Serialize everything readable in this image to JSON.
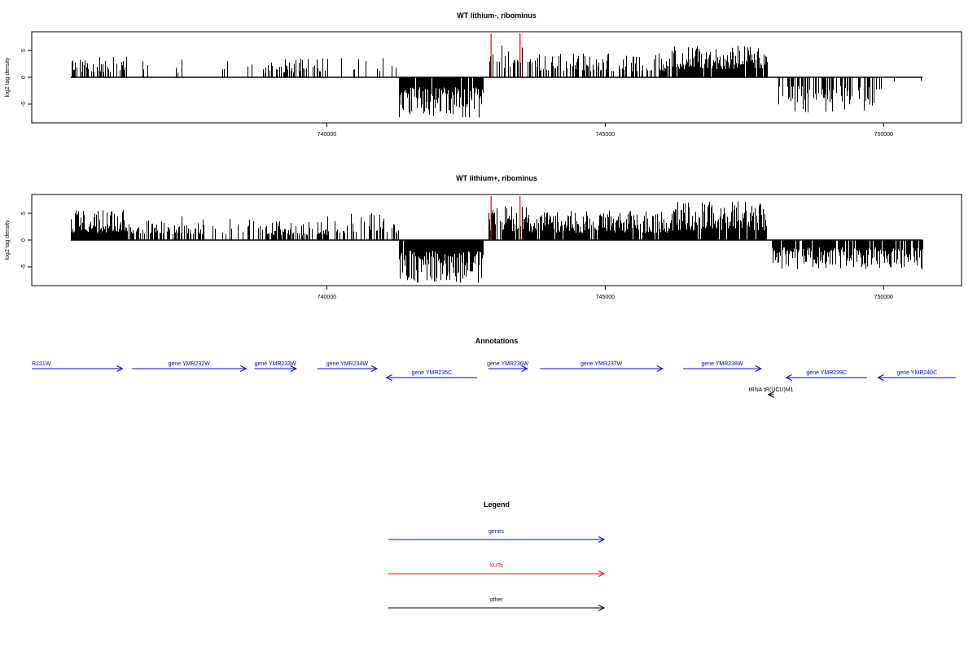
{
  "chart_data": [
    {
      "type": "bar",
      "title": "WT lithium-, ribominus",
      "xlabel": "",
      "ylabel": "log2 tag density",
      "x_ticks": [
        740000,
        745000,
        750000
      ],
      "y_ticks": [
        5,
        0,
        -5
      ],
      "xlim": [
        734700,
        751400
      ],
      "ylim": [
        -8.5,
        8.5
      ],
      "data_range": [
        735400,
        750700
      ],
      "colors": {
        "bars": "#000000",
        "xut_marker": "#ff0000",
        "frame": "#000000"
      },
      "xut_markers": [
        {
          "x": 742950,
          "y": 8.2
        },
        {
          "x": 743470,
          "y": 8.2
        }
      ],
      "segments": [
        {
          "x_start": 735400,
          "x_end": 736400,
          "sign": 1,
          "max": 3.9,
          "density": 0.5
        },
        {
          "x_start": 736400,
          "x_end": 737800,
          "sign": 1,
          "max": 3.5,
          "density": 0.12
        },
        {
          "x_start": 737800,
          "x_end": 738900,
          "sign": 1,
          "max": 3.2,
          "density": 0.06
        },
        {
          "x_start": 738900,
          "x_end": 740000,
          "sign": 1,
          "max": 3.6,
          "density": 0.45
        },
        {
          "x_start": 740000,
          "x_end": 741300,
          "sign": 1,
          "max": 4.3,
          "density": 0.15
        },
        {
          "x_start": 741300,
          "x_end": 742800,
          "sign": -1,
          "max": 7.5,
          "density": 0.95
        },
        {
          "x_start": 742900,
          "x_end": 743600,
          "sign": 1,
          "max": 6.0,
          "density": 0.35
        },
        {
          "x_start": 743600,
          "x_end": 746200,
          "sign": 1,
          "max": 4.5,
          "density": 0.45
        },
        {
          "x_start": 746200,
          "x_end": 747900,
          "sign": 1,
          "max": 6.0,
          "density": 0.9
        },
        {
          "x_start": 748100,
          "x_end": 749900,
          "sign": -1,
          "max": 6.6,
          "density": 0.45
        },
        {
          "x_start": 749900,
          "x_end": 750700,
          "sign": -1,
          "max": 2.5,
          "density": 0.06
        }
      ]
    },
    {
      "type": "bar",
      "title": "WT lithium+, ribominus",
      "xlabel": "",
      "ylabel": "log2 tag density",
      "x_ticks": [
        740000,
        745000,
        750000
      ],
      "y_ticks": [
        5,
        0,
        -5
      ],
      "xlim": [
        734700,
        751400
      ],
      "ylim": [
        -8.5,
        8.5
      ],
      "data_range": [
        735400,
        750700
      ],
      "colors": {
        "bars": "#000000",
        "xut_marker": "#ff0000",
        "frame": "#000000"
      },
      "xut_markers": [
        {
          "x": 742950,
          "y": 8.2
        },
        {
          "x": 743470,
          "y": 8.2
        }
      ],
      "segments": [
        {
          "x_start": 735400,
          "x_end": 736400,
          "sign": 1,
          "max": 5.6,
          "density": 0.95
        },
        {
          "x_start": 736400,
          "x_end": 737800,
          "sign": 1,
          "max": 4.5,
          "density": 0.55
        },
        {
          "x_start": 737800,
          "x_end": 738900,
          "sign": 1,
          "max": 4.0,
          "density": 0.3
        },
        {
          "x_start": 738900,
          "x_end": 740000,
          "sign": 1,
          "max": 3.6,
          "density": 0.55
        },
        {
          "x_start": 740000,
          "x_end": 741300,
          "sign": 1,
          "max": 5.0,
          "density": 0.35
        },
        {
          "x_start": 741300,
          "x_end": 742800,
          "sign": -1,
          "max": 8.0,
          "density": 0.98
        },
        {
          "x_start": 742900,
          "x_end": 743600,
          "sign": 1,
          "max": 6.5,
          "density": 0.85
        },
        {
          "x_start": 743600,
          "x_end": 746200,
          "sign": 1,
          "max": 5.5,
          "density": 0.9
        },
        {
          "x_start": 746200,
          "x_end": 747900,
          "sign": 1,
          "max": 7.2,
          "density": 0.95
        },
        {
          "x_start": 748000,
          "x_end": 750700,
          "sign": -1,
          "max": 5.5,
          "density": 0.85
        }
      ]
    }
  ],
  "annotations": {
    "title": "Annotations",
    "genes": [
      {
        "label": "R231W",
        "direction": "right",
        "x_start": 734700,
        "x_end": 736330,
        "row": 0,
        "color": "#0000ff"
      },
      {
        "label": "gene YMR232W",
        "direction": "right",
        "x_start": 736500,
        "x_end": 738550,
        "row": 0,
        "color": "#0000ff"
      },
      {
        "label": "gene YMR233W",
        "direction": "right",
        "x_start": 738700,
        "x_end": 739450,
        "row": 0,
        "color": "#0000ff"
      },
      {
        "label": "gene YMR234W",
        "direction": "right",
        "x_start": 739830,
        "x_end": 740900,
        "row": 0,
        "color": "#0000ff"
      },
      {
        "label": "gene YMR235C",
        "direction": "left",
        "x_start": 741070,
        "x_end": 742700,
        "row": 1,
        "color": "#0000ff"
      },
      {
        "label": "gene YMR236W",
        "direction": "right",
        "x_start": 742900,
        "x_end": 743600,
        "row": 0,
        "color": "#0000ff"
      },
      {
        "label": "gene YMR237W",
        "direction": "right",
        "x_start": 743830,
        "x_end": 746030,
        "row": 0,
        "color": "#0000ff"
      },
      {
        "label": "gene YMR238W",
        "direction": "right",
        "x_start": 746400,
        "x_end": 747800,
        "row": 0,
        "color": "#0000ff"
      },
      {
        "label": "gene YMR239C",
        "direction": "left",
        "x_start": 748250,
        "x_end": 749700,
        "row": 1,
        "color": "#0000ff"
      },
      {
        "label": "gene YMR240C",
        "direction": "left",
        "x_start": 749900,
        "x_end": 751300,
        "row": 1,
        "color": "#0000ff"
      }
    ],
    "other": [
      {
        "label": "tRNA tR(UCU)M1",
        "direction": "left",
        "x_start": 747930,
        "x_end": 748030,
        "color": "#000000"
      }
    ]
  },
  "legend": {
    "title": "Legend",
    "items": [
      {
        "label": "genes",
        "color": "#0000ff"
      },
      {
        "label": "XUTs",
        "color": "#ff0000"
      },
      {
        "label": "other",
        "color": "#000000"
      }
    ]
  }
}
